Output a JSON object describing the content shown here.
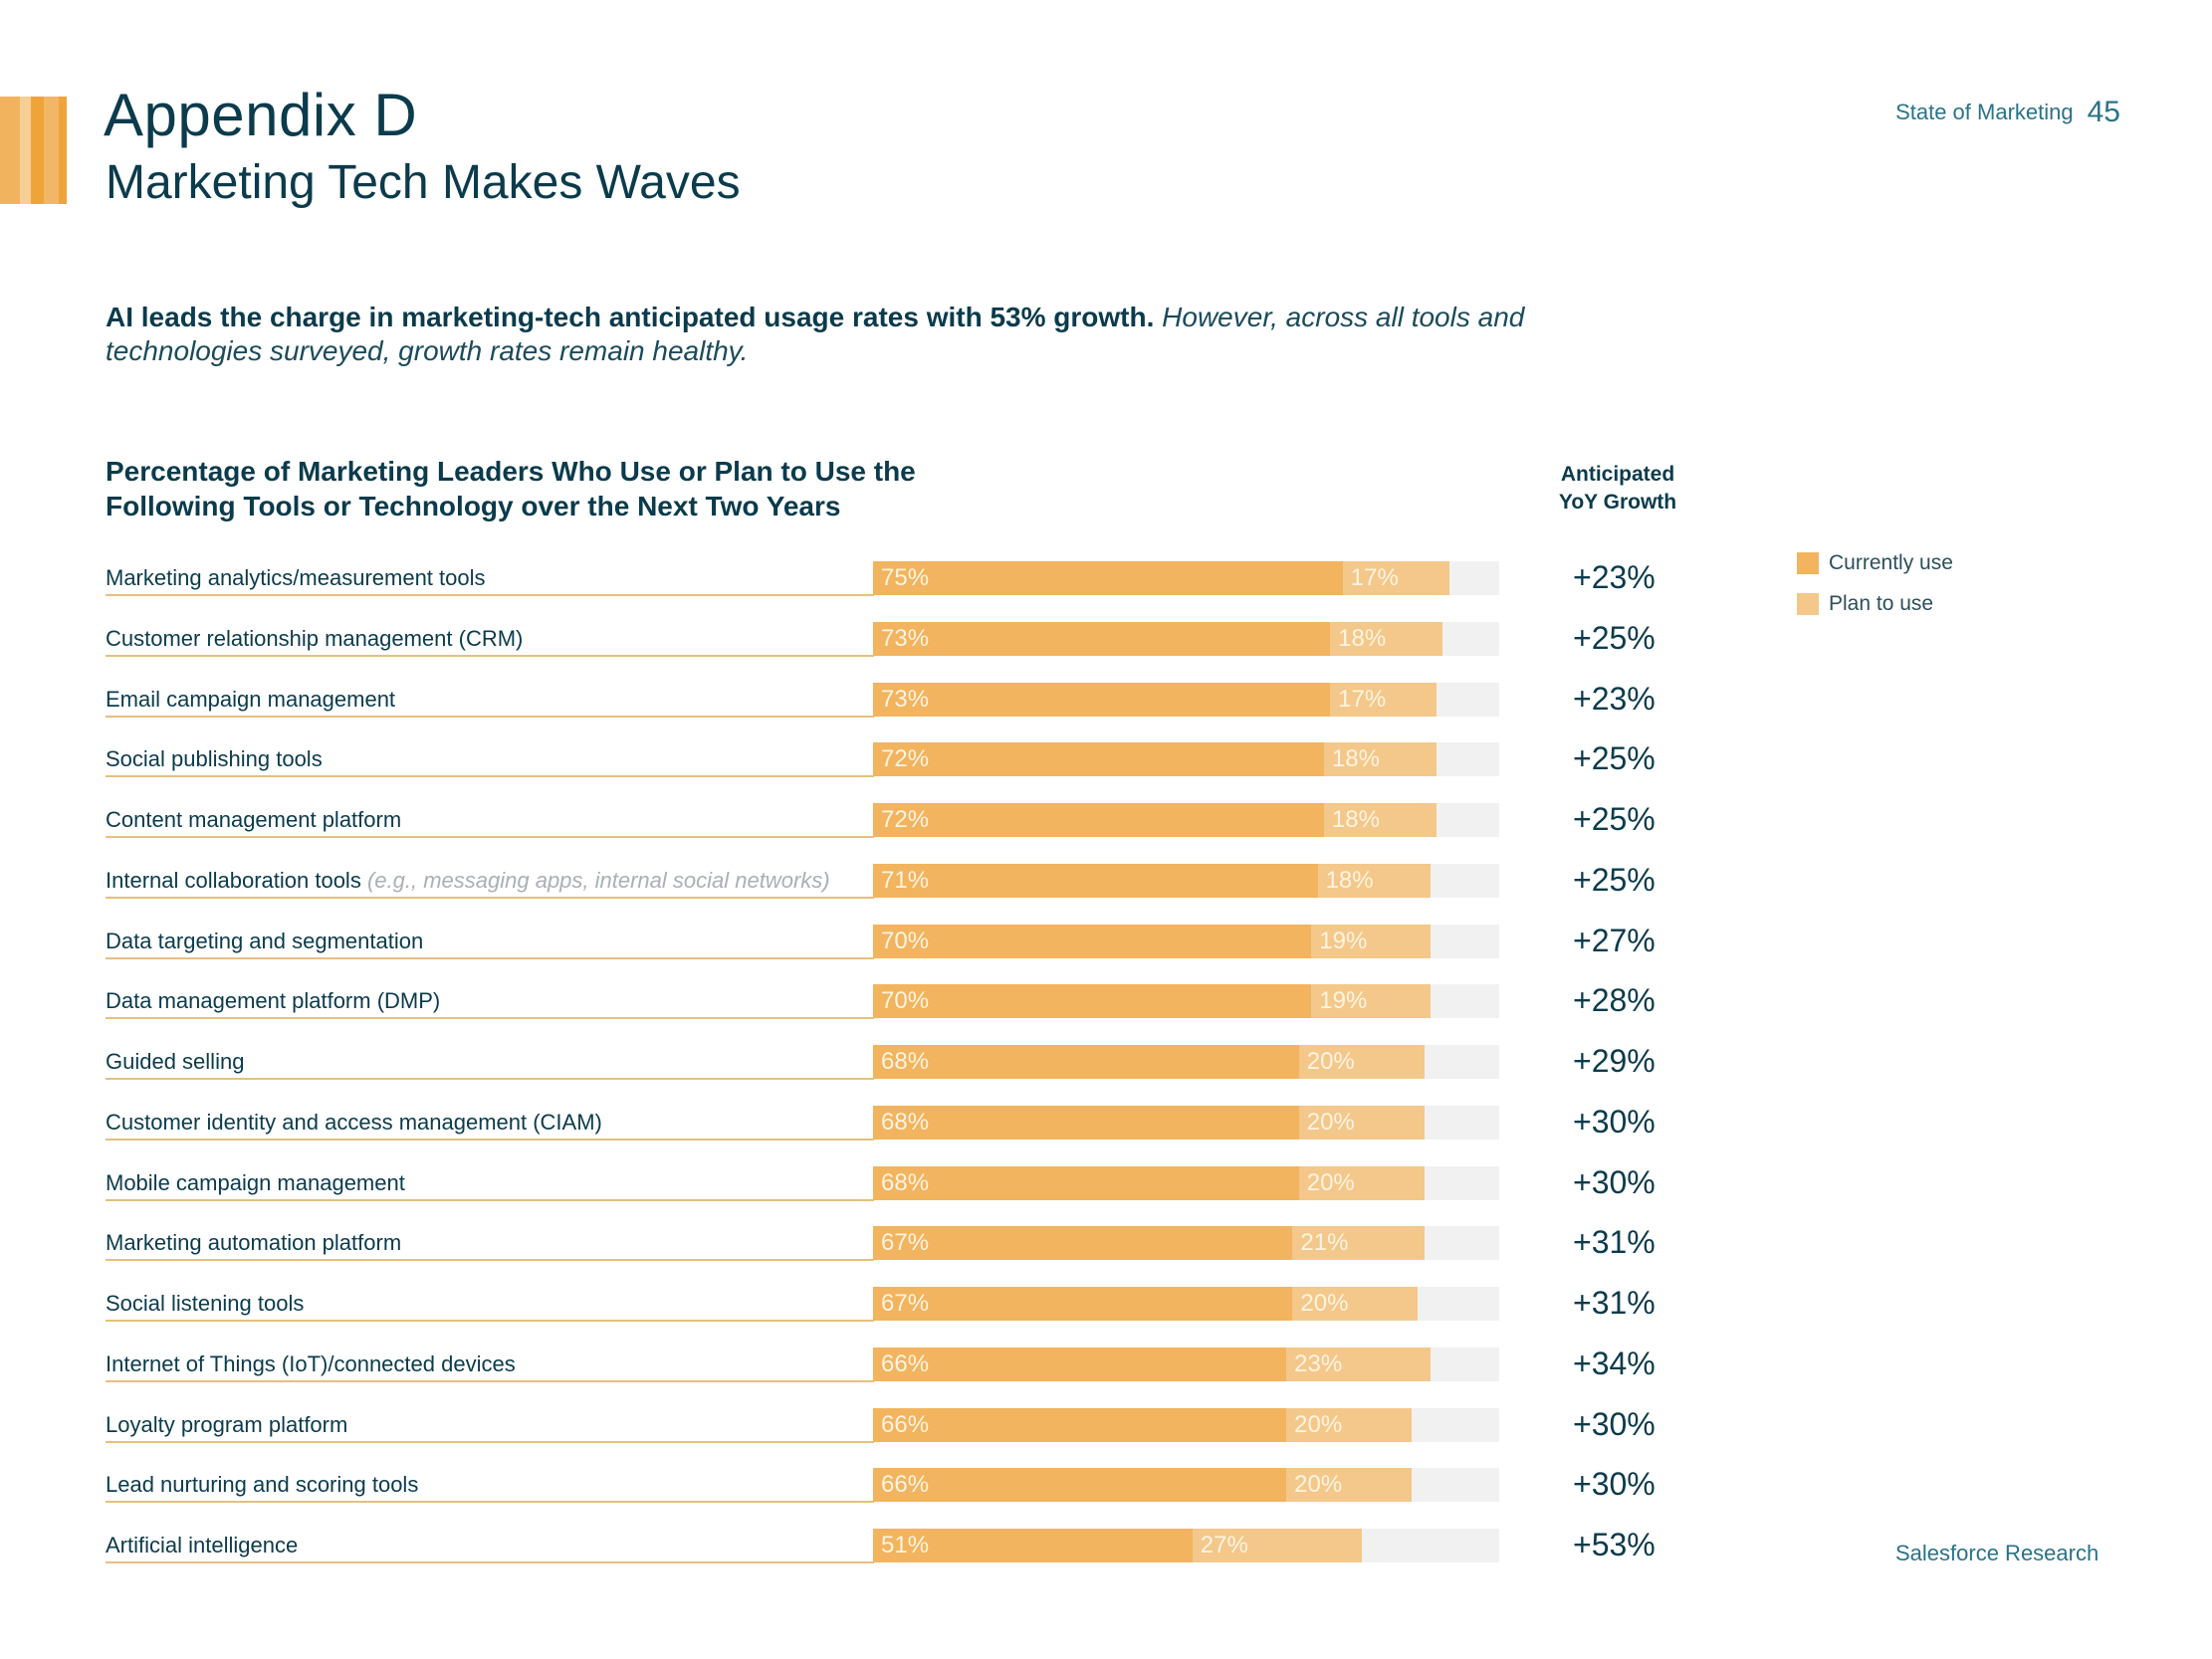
{
  "colors": {
    "current": "#f2b45e",
    "plan": "#f4c88a",
    "track": "#f1f1f1",
    "text": "#0b3b4c",
    "accent_text": "#2a7388",
    "stripes": [
      "#f2b35e",
      "#f6ce97",
      "#efa43a",
      "#f2b766",
      "#efa43a"
    ]
  },
  "header": {
    "title": "Appendix D",
    "subtitle": "Marketing Tech Makes Waves",
    "running_head": "State of Marketing",
    "page_number": "45"
  },
  "intro": {
    "bold": "AI leads the charge in marketing-tech anticipated usage rates with 53% growth.",
    "italic": "However, across all tools and technologies surveyed, growth rates remain healthy."
  },
  "footer": {
    "source": "Salesforce Research"
  },
  "chart_data": {
    "type": "bar",
    "orientation": "horizontal-stacked",
    "title": "Percentage of Marketing Leaders Who Use or Plan to Use the Following Tools or Technology over the Next Two Years",
    "growth_header": "Anticipated YoY Growth",
    "xlim": [
      0,
      100
    ],
    "unit": "%",
    "legend_position": "top-right",
    "legend": [
      "Currently use",
      "Plan to use"
    ],
    "categories": [
      {
        "label": "Marketing analytics/measurement tools",
        "note": ""
      },
      {
        "label": "Customer relationship management (CRM)",
        "note": ""
      },
      {
        "label": "Email campaign management",
        "note": ""
      },
      {
        "label": "Social publishing tools",
        "note": ""
      },
      {
        "label": "Content management platform",
        "note": ""
      },
      {
        "label": "Internal collaboration tools",
        "note": "(e.g., messaging apps, internal social networks)"
      },
      {
        "label": "Data targeting and segmentation",
        "note": ""
      },
      {
        "label": "Data management platform (DMP)",
        "note": ""
      },
      {
        "label": "Guided selling",
        "note": ""
      },
      {
        "label": "Customer identity and access management (CIAM)",
        "note": ""
      },
      {
        "label": "Mobile campaign management",
        "note": ""
      },
      {
        "label": "Marketing automation platform",
        "note": ""
      },
      {
        "label": "Social listening tools",
        "note": ""
      },
      {
        "label": "Internet of Things (IoT)/connected devices",
        "note": ""
      },
      {
        "label": "Loyalty program platform",
        "note": ""
      },
      {
        "label": "Lead nurturing and scoring tools",
        "note": ""
      },
      {
        "label": "Artificial intelligence",
        "note": ""
      }
    ],
    "series": [
      {
        "name": "Currently use",
        "values": [
          75,
          73,
          73,
          72,
          72,
          71,
          70,
          70,
          68,
          68,
          68,
          67,
          67,
          66,
          66,
          66,
          51
        ]
      },
      {
        "name": "Plan to use",
        "values": [
          17,
          18,
          17,
          18,
          18,
          18,
          19,
          19,
          20,
          20,
          20,
          21,
          20,
          23,
          20,
          20,
          27
        ]
      }
    ],
    "growth": [
      "+23%",
      "+25%",
      "+23%",
      "+25%",
      "+25%",
      "+25%",
      "+27%",
      "+28%",
      "+29%",
      "+30%",
      "+30%",
      "+31%",
      "+31%",
      "+34%",
      "+30%",
      "+30%",
      "+53%"
    ]
  }
}
